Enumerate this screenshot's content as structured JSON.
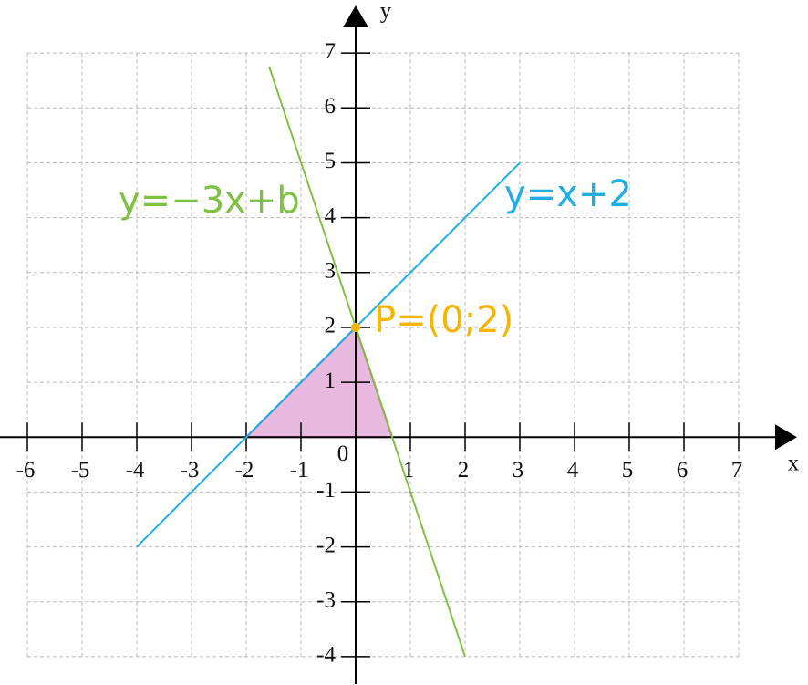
{
  "chart_data": {
    "type": "line",
    "x_label": "x",
    "y_label": "y",
    "origin_label": "0",
    "xlim": [
      -6.5,
      8
    ],
    "ylim": [
      -4.5,
      7.8
    ],
    "xticks": [
      -6,
      -5,
      -4,
      -3,
      -2,
      -1,
      1,
      2,
      3,
      4,
      5,
      6,
      7
    ],
    "yticks": [
      -4,
      -3,
      -2,
      -1,
      1,
      2,
      3,
      4,
      5,
      6,
      7
    ],
    "grid": true,
    "series": [
      {
        "name": "y=−3x+b",
        "color": "#7dc242",
        "x": [
          -1.58,
          2
        ],
        "values": [
          6.75,
          -4
        ]
      },
      {
        "name": "y=x+2",
        "color": "#1eaee3",
        "x": [
          -4,
          3
        ],
        "values": [
          -2,
          5
        ]
      }
    ],
    "shaded_region": {
      "color": "#e8b9de",
      "edge_color": "#b5238f",
      "x": [
        -2,
        0,
        0.667
      ],
      "values": [
        0,
        2,
        0
      ]
    },
    "point": {
      "label": "P=(0;2)",
      "color": "#f7b500",
      "x": 0,
      "value": 2
    }
  }
}
